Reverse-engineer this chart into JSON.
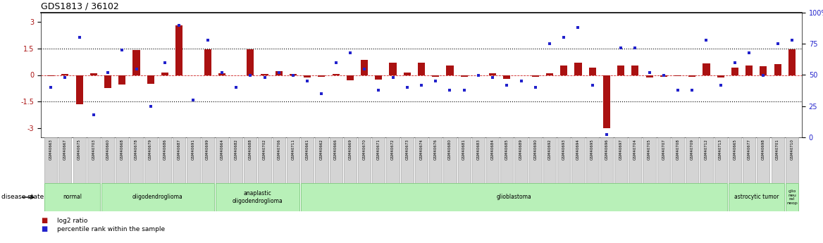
{
  "title": "GDS1813 / 36102",
  "samples": [
    "GSM40663",
    "GSM40667",
    "GSM40675",
    "GSM40703",
    "GSM40660",
    "GSM40668",
    "GSM40678",
    "GSM40679",
    "GSM40686",
    "GSM40687",
    "GSM40691",
    "GSM40699",
    "GSM40664",
    "GSM40682",
    "GSM40688",
    "GSM40702",
    "GSM40706",
    "GSM40711",
    "GSM40661",
    "GSM40662",
    "GSM40666",
    "GSM40669",
    "GSM40670",
    "GSM40671",
    "GSM40672",
    "GSM40673",
    "GSM40674",
    "GSM40676",
    "GSM40680",
    "GSM40681",
    "GSM40683",
    "GSM40684",
    "GSM40685",
    "GSM40689",
    "GSM40690",
    "GSM40692",
    "GSM40693",
    "GSM40694",
    "GSM40695",
    "GSM40696",
    "GSM40697",
    "GSM40704",
    "GSM40705",
    "GSM40707",
    "GSM40708",
    "GSM40709",
    "GSM40712",
    "GSM40713",
    "GSM40665",
    "GSM40677",
    "GSM40698",
    "GSM40701",
    "GSM40710"
  ],
  "log2_ratio": [
    -0.05,
    0.05,
    -1.65,
    0.1,
    -0.75,
    -0.55,
    1.4,
    -0.5,
    0.15,
    2.8,
    0.0,
    1.45,
    0.1,
    0.0,
    1.45,
    0.05,
    0.2,
    0.05,
    -0.15,
    -0.1,
    0.05,
    -0.3,
    0.85,
    -0.25,
    0.7,
    0.15,
    0.7,
    -0.1,
    0.55,
    -0.1,
    0.0,
    0.1,
    -0.2,
    0.0,
    -0.1,
    0.1,
    0.55,
    0.7,
    0.4,
    -3.0,
    0.55,
    0.55,
    -0.15,
    -0.1,
    -0.05,
    -0.1,
    0.65,
    -0.15,
    0.4,
    0.55,
    0.5,
    0.6,
    1.45
  ],
  "percentile": [
    40,
    48,
    80,
    18,
    52,
    70,
    55,
    25,
    60,
    90,
    30,
    78,
    52,
    40,
    50,
    48,
    52,
    50,
    45,
    35,
    60,
    68,
    55,
    38,
    48,
    40,
    42,
    45,
    38,
    38,
    50,
    48,
    42,
    45,
    40,
    75,
    80,
    88,
    42,
    2,
    72,
    72,
    52,
    50,
    38,
    38,
    78,
    42,
    60,
    68,
    50,
    75,
    78
  ],
  "disease_groups": [
    {
      "label": "normal",
      "start": 0,
      "end": 3
    },
    {
      "label": "oligodendroglioma",
      "start": 4,
      "end": 11
    },
    {
      "label": "anaplastic\noligodendroglioma",
      "start": 12,
      "end": 17
    },
    {
      "label": "glioblastoma",
      "start": 18,
      "end": 47
    },
    {
      "label": "astrocytic tumor",
      "start": 48,
      "end": 51
    },
    {
      "label": "glio\nneu\nral\nneop",
      "start": 52,
      "end": 52
    }
  ],
  "group_color": "#b8f0b8",
  "group_edge_color": "#66bb66",
  "bar_color": "#aa1111",
  "dot_color": "#2222cc",
  "left_ylim": [
    -3.5,
    3.5
  ],
  "right_ylim": [
    0,
    100
  ],
  "left_yticks": [
    -3,
    -1.5,
    0,
    1.5,
    3
  ],
  "right_yticks": [
    0,
    25,
    50,
    75,
    100
  ],
  "bg_color": "#ffffff",
  "sample_box_color": "#d4d4d4",
  "sample_box_edge": "#999999"
}
